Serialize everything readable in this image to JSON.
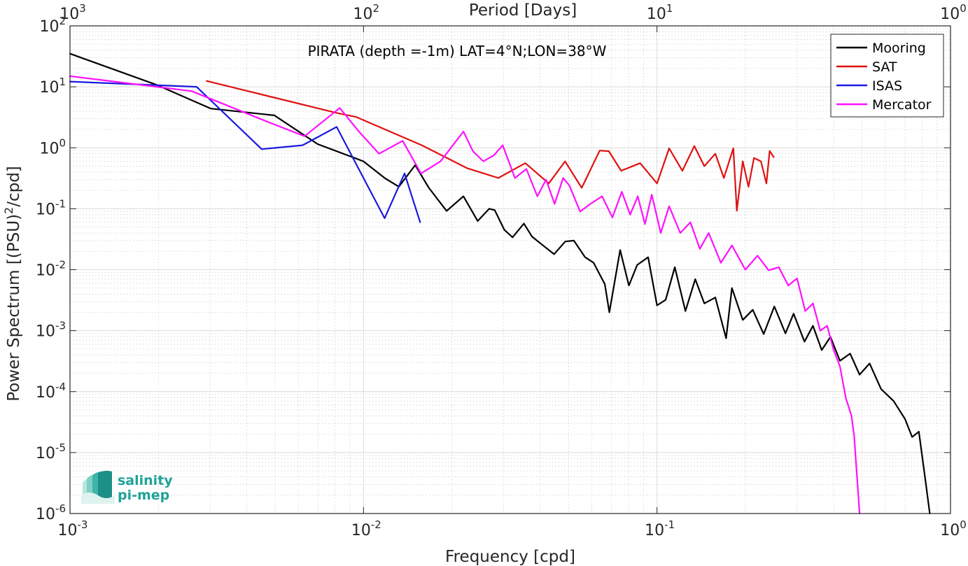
{
  "chart_data": {
    "type": "line",
    "title": "PIRATA (depth =-1m) LAT=4°N;LON=38°W",
    "xlabel": "Frequency [cpd]",
    "ylabel": "Power Spectrum [(PSU)²/cpd]",
    "x2label": "Period [Days]",
    "xscale": "log",
    "yscale": "log",
    "xlim": [
      0.001,
      1
    ],
    "ylim": [
      1e-06,
      100
    ],
    "grid": true,
    "minor_grid": true,
    "legend_position": "top-right",
    "x_ticks": [
      {
        "value": 0.001,
        "base": "10",
        "exp": "-3"
      },
      {
        "value": 0.01,
        "base": "10",
        "exp": "-2"
      },
      {
        "value": 0.1,
        "base": "10",
        "exp": "-1"
      },
      {
        "value": 1,
        "base": "10",
        "exp": "0"
      }
    ],
    "y_ticks": [
      {
        "value": 100,
        "base": "10",
        "exp": "2"
      },
      {
        "value": 10,
        "base": "10",
        "exp": "1"
      },
      {
        "value": 1,
        "base": "10",
        "exp": "0"
      },
      {
        "value": 0.1,
        "base": "10",
        "exp": "-1"
      },
      {
        "value": 0.01,
        "base": "10",
        "exp": "-2"
      },
      {
        "value": 0.001,
        "base": "10",
        "exp": "-3"
      },
      {
        "value": 0.0001,
        "base": "10",
        "exp": "-4"
      },
      {
        "value": 1e-05,
        "base": "10",
        "exp": "-5"
      },
      {
        "value": 1e-06,
        "base": "10",
        "exp": "-6"
      }
    ],
    "x2_ticks": [
      {
        "value": 0.001,
        "base": "10",
        "exp": "3"
      },
      {
        "value": 0.01,
        "base": "10",
        "exp": "2"
      },
      {
        "value": 0.1,
        "base": "10",
        "exp": "1"
      },
      {
        "value": 1,
        "base": "10",
        "exp": "0"
      }
    ],
    "series": [
      {
        "name": "Mooring",
        "color": "#000000",
        "x": [
          0.001,
          0.00197,
          0.00302,
          0.00497,
          0.00698,
          0.01,
          0.0118,
          0.0132,
          0.015,
          0.0167,
          0.0192,
          0.0219,
          0.0245,
          0.0268,
          0.028,
          0.0302,
          0.0322,
          0.0352,
          0.0375,
          0.0409,
          0.0446,
          0.0487,
          0.0521,
          0.0569,
          0.0608,
          0.0664,
          0.0688,
          0.0749,
          0.0802,
          0.0856,
          0.0933,
          0.1,
          0.107,
          0.115,
          0.125,
          0.135,
          0.145,
          0.158,
          0.172,
          0.18,
          0.196,
          0.212,
          0.231,
          0.251,
          0.274,
          0.292,
          0.318,
          0.34,
          0.364,
          0.39,
          0.42,
          0.455,
          0.49,
          0.53,
          0.58,
          0.64,
          0.7,
          0.74,
          0.78,
          0.82,
          0.85
        ],
        "y": [
          35,
          10.8,
          4.4,
          3.4,
          1.15,
          0.6,
          0.32,
          0.23,
          0.52,
          0.22,
          0.092,
          0.16,
          0.063,
          0.1,
          0.095,
          0.045,
          0.034,
          0.057,
          0.035,
          0.025,
          0.018,
          0.029,
          0.03,
          0.016,
          0.013,
          0.0058,
          0.002,
          0.021,
          0.0055,
          0.012,
          0.016,
          0.0026,
          0.0032,
          0.011,
          0.0021,
          0.007,
          0.0028,
          0.0035,
          0.00075,
          0.005,
          0.0015,
          0.0022,
          0.00088,
          0.0025,
          0.0009,
          0.0019,
          0.00066,
          0.0012,
          0.00048,
          0.00079,
          0.00032,
          0.00042,
          0.00019,
          0.00029,
          0.00011,
          7e-05,
          3.55e-05,
          1.8e-05,
          2.2e-05,
          3.7e-06,
          1e-06
        ]
      },
      {
        "name": "SAT",
        "color": "#e01010",
        "x": [
          0.00292,
          0.00815,
          0.00945,
          0.0158,
          0.0226,
          0.0288,
          0.0356,
          0.0428,
          0.0486,
          0.0554,
          0.0638,
          0.0685,
          0.0755,
          0.0876,
          0.1,
          0.11,
          0.122,
          0.134,
          0.145,
          0.158,
          0.169,
          0.182,
          0.187,
          0.196,
          0.205,
          0.214,
          0.226,
          0.236,
          0.242,
          0.25
        ],
        "y": [
          12.5,
          3.7,
          3.2,
          1.1,
          0.46,
          0.32,
          0.56,
          0.26,
          0.6,
          0.22,
          0.9,
          0.88,
          0.42,
          0.56,
          0.26,
          0.98,
          0.42,
          1.07,
          0.5,
          0.8,
          0.32,
          0.98,
          0.093,
          0.6,
          0.23,
          0.68,
          0.6,
          0.26,
          0.89,
          0.7
        ]
      },
      {
        "name": "ISAS",
        "color": "#1a1ae0",
        "x": [
          0.001,
          0.0027,
          0.0045,
          0.0062,
          0.0081,
          0.0118,
          0.0138,
          0.0156
        ],
        "y": [
          12.2,
          10,
          0.95,
          1.1,
          2.2,
          0.07,
          0.38,
          0.06
        ]
      },
      {
        "name": "Mercator",
        "color": "#ff10ff",
        "x": [
          0.001,
          0.0026,
          0.0046,
          0.0063,
          0.0083,
          0.0096,
          0.0113,
          0.0136,
          0.0157,
          0.0183,
          0.0201,
          0.0219,
          0.0236,
          0.0256,
          0.0278,
          0.0298,
          0.0328,
          0.0359,
          0.0391,
          0.0419,
          0.0448,
          0.0479,
          0.0503,
          0.0547,
          0.0593,
          0.065,
          0.0705,
          0.0759,
          0.081,
          0.086,
          0.091,
          0.096,
          0.103,
          0.11,
          0.12,
          0.13,
          0.14,
          0.15,
          0.165,
          0.18,
          0.2,
          0.22,
          0.24,
          0.26,
          0.28,
          0.3,
          0.32,
          0.34,
          0.36,
          0.38,
          0.4,
          0.42,
          0.44,
          0.46,
          0.47,
          0.48,
          0.49
        ],
        "y": [
          15,
          8.5,
          2.8,
          1.55,
          4.5,
          1.9,
          0.8,
          1.3,
          0.38,
          0.6,
          1.08,
          1.85,
          0.88,
          0.6,
          0.75,
          1.1,
          0.32,
          0.45,
          0.16,
          0.3,
          0.12,
          0.32,
          0.24,
          0.09,
          0.12,
          0.16,
          0.072,
          0.19,
          0.08,
          0.16,
          0.056,
          0.17,
          0.04,
          0.11,
          0.04,
          0.06,
          0.022,
          0.04,
          0.013,
          0.025,
          0.01,
          0.017,
          0.0098,
          0.011,
          0.0055,
          0.0072,
          0.0021,
          0.0028,
          0.001,
          0.0012,
          0.00048,
          0.00026,
          7.8e-05,
          4e-05,
          1.8e-05,
          4.2e-06,
          1e-06
        ]
      }
    ]
  },
  "logo": {
    "line1": "salinity",
    "line2": "pi-mep"
  }
}
